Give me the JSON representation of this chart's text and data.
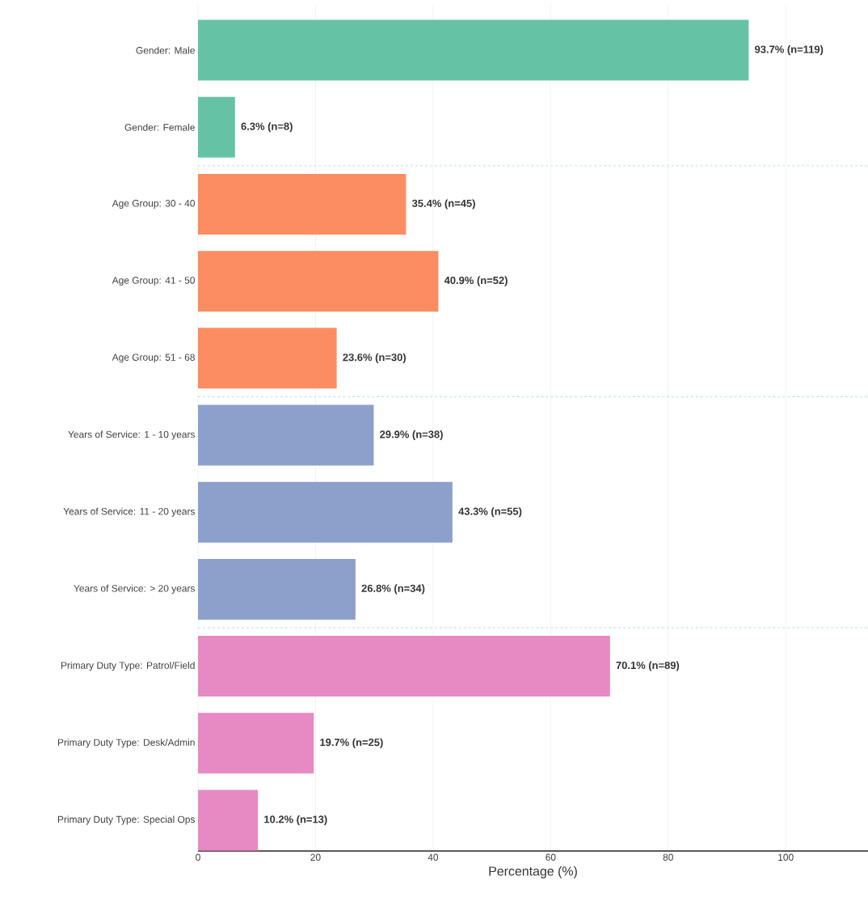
{
  "chart_data": {
    "type": "bar",
    "orientation": "horizontal",
    "xlabel": "Percentage (%)",
    "categories": [
      "Gender: Male",
      "Gender: Female",
      "Age Group: 30 - 40",
      "Age Group: 41 - 50",
      "Age Group: 51 - 68",
      "Years of Service: 1 - 10 years",
      "Years of Service: 11 - 20 years",
      "Years of Service: > 20 years",
      "Primary Duty Type: Patrol/Field",
      "Primary Duty Type: Desk/Admin",
      "Primary Duty Type: Special Ops"
    ],
    "values": [
      93.7,
      6.3,
      35.4,
      40.9,
      23.6,
      29.9,
      43.3,
      26.8,
      70.1,
      19.7,
      10.2
    ],
    "value_labels": [
      "93.7% (n=119)",
      "6.3% (n=8)",
      "35.4% (n=45)",
      "40.9% (n=52)",
      "23.6% (n=30)",
      "29.9% (n=38)",
      "43.3% (n=55)",
      "26.8% (n=34)",
      "70.1% (n=89)",
      "19.7% (n=25)",
      "10.2% (n=13)"
    ],
    "colors": [
      "#66c2a5",
      "#66c2a5",
      "#fc8d62",
      "#fc8d62",
      "#fc8d62",
      "#8da0cb",
      "#8da0cb",
      "#8da0cb",
      "#e78ac3",
      "#e78ac3",
      "#e78ac3"
    ],
    "xlim": [
      0,
      114
    ],
    "xticks": [
      0,
      20,
      40,
      60,
      80,
      100
    ],
    "grid": "x"
  }
}
